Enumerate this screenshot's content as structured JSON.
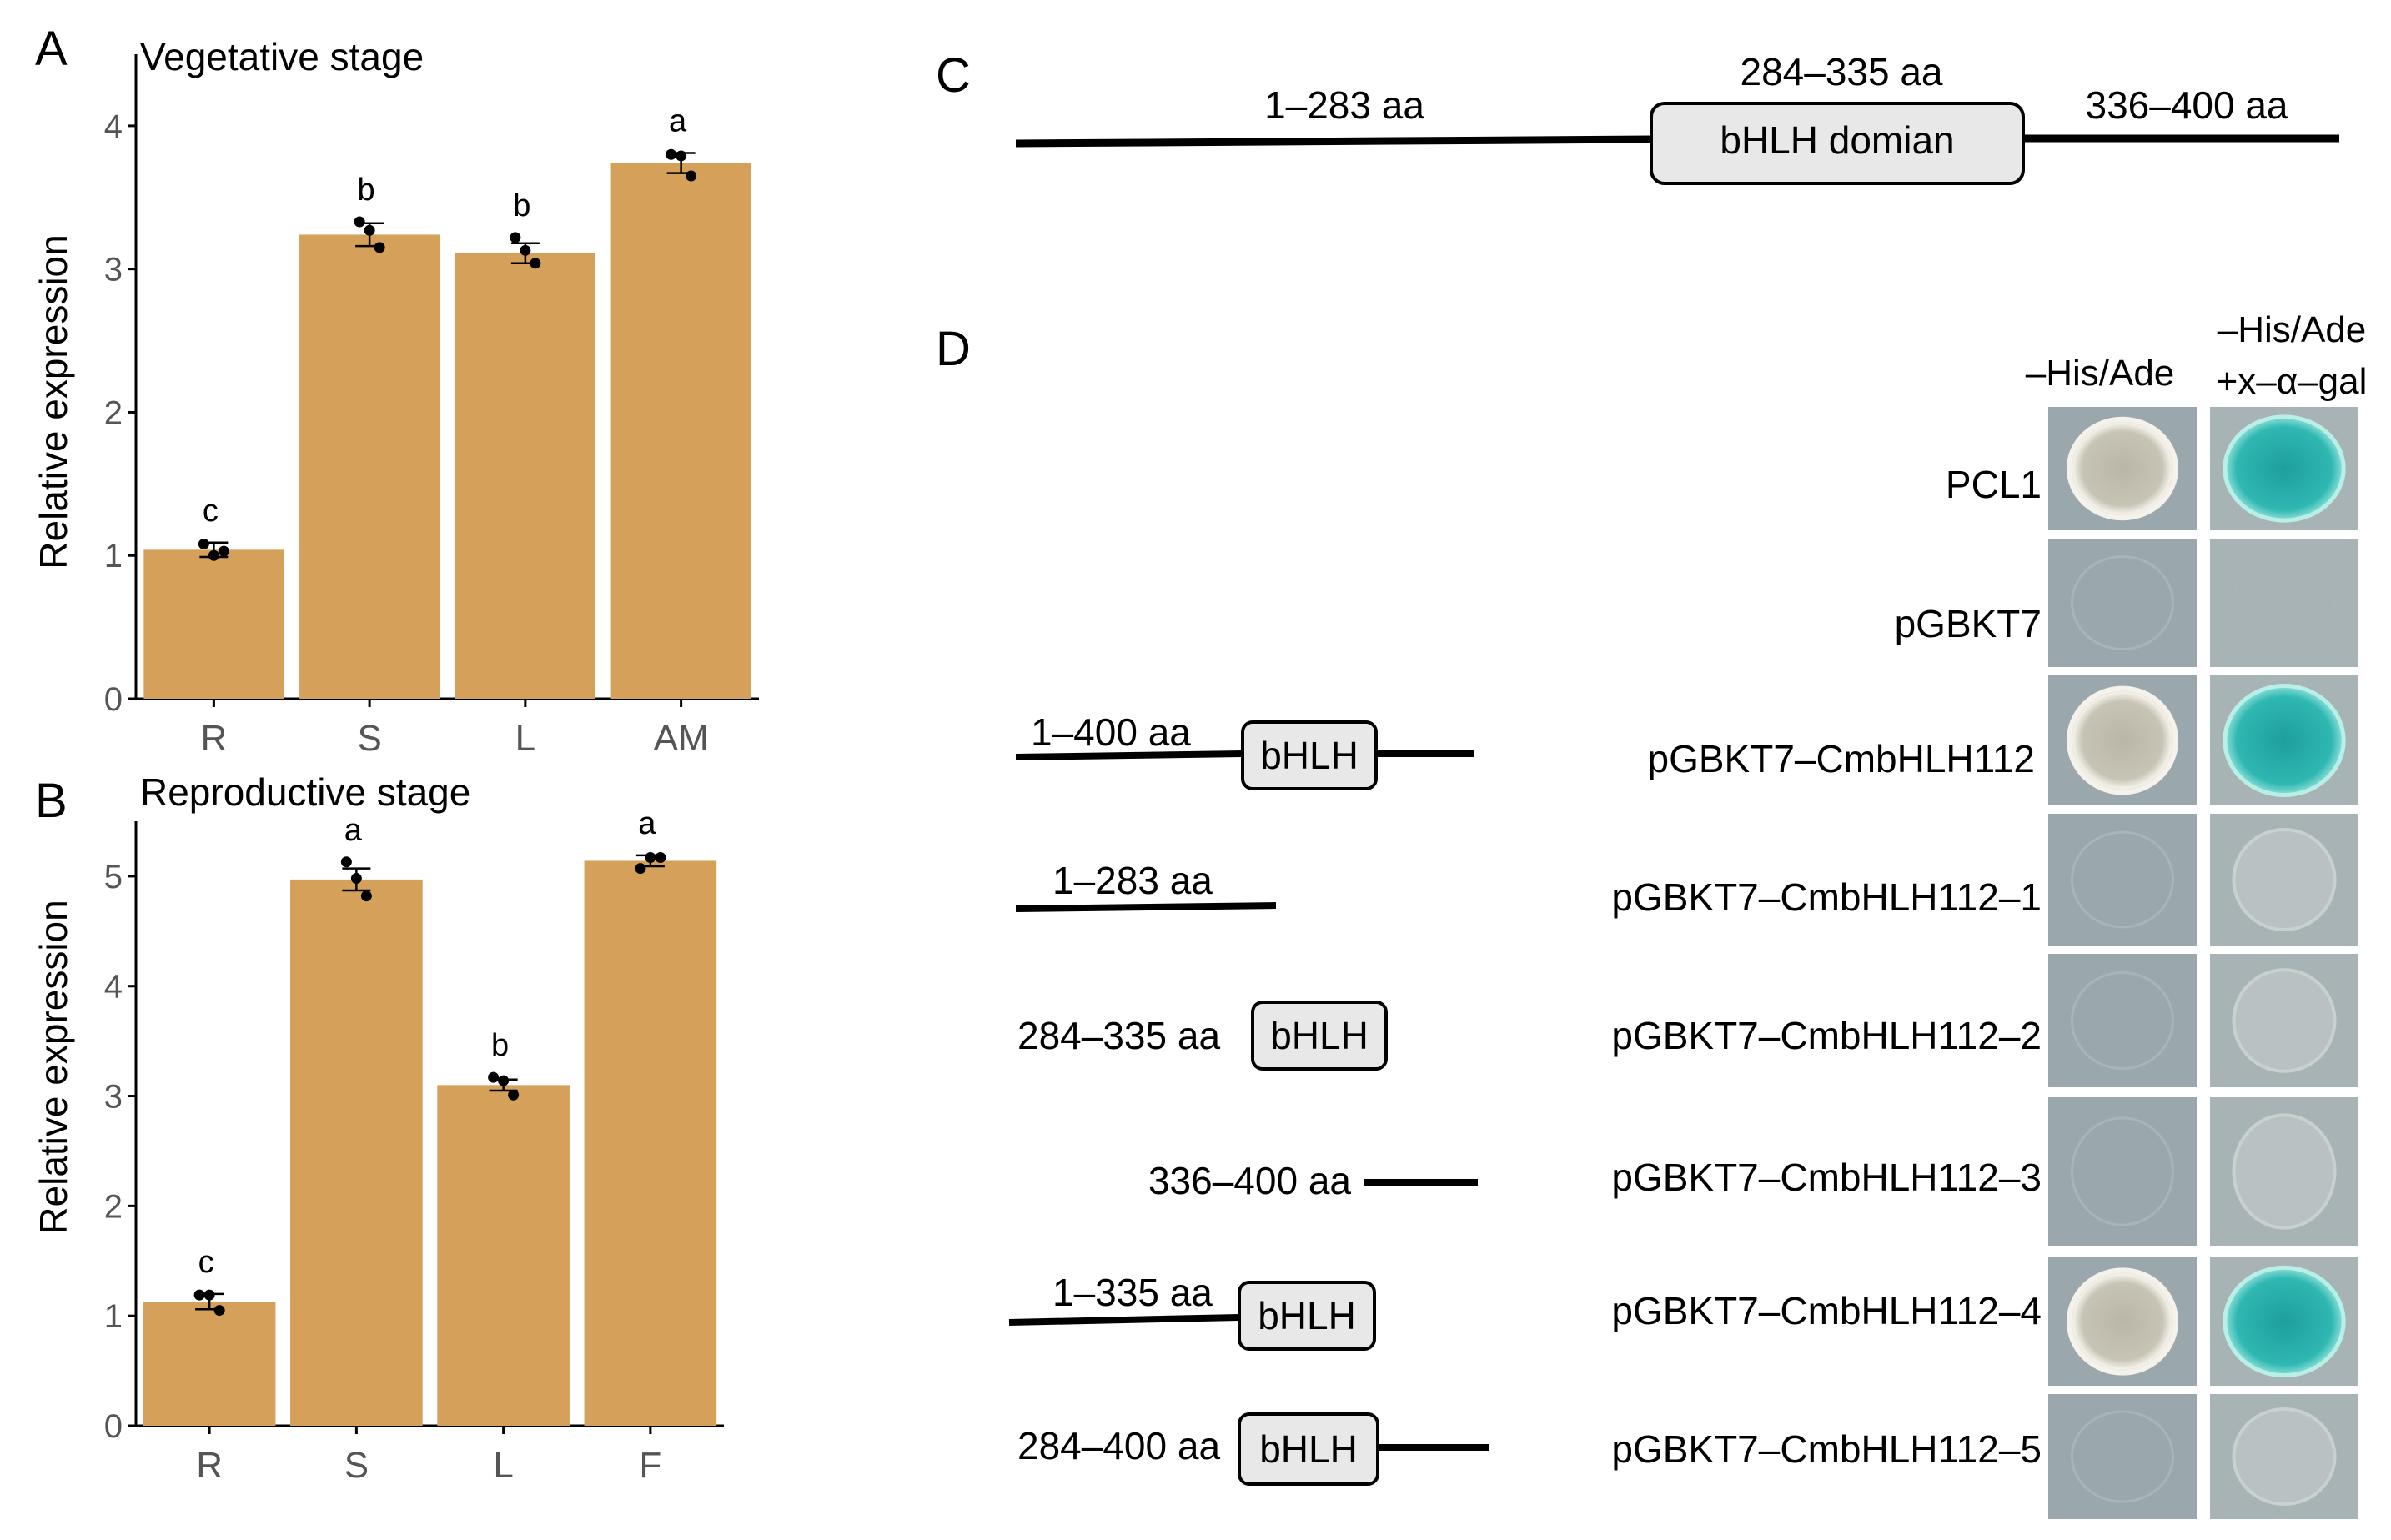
{
  "colors": {
    "bar": "#d4a05a",
    "domain_fill": "#e8e8e8",
    "text": "#000000",
    "tick_text": "#555555"
  },
  "panels": {
    "A": "A",
    "B": "B",
    "C": "C",
    "D": "D"
  },
  "chart_data": [
    {
      "type": "bar",
      "panel": "A",
      "title": "Vegetative stage",
      "xlabel": "",
      "ylabel": "Relative expression",
      "ylim": [
        0,
        4.5
      ],
      "yticks": [
        0,
        1,
        2,
        3,
        4
      ],
      "categories": [
        "R",
        "S",
        "L",
        "AM"
      ],
      "values": [
        1.04,
        3.24,
        3.11,
        3.74
      ],
      "errors": [
        0.05,
        0.08,
        0.07,
        0.07
      ],
      "points": [
        [
          1.08,
          1.0,
          1.03
        ],
        [
          3.33,
          3.27,
          3.15
        ],
        [
          3.22,
          3.13,
          3.04
        ],
        [
          3.8,
          3.79,
          3.65
        ]
      ],
      "significance": [
        "c",
        "b",
        "b",
        "a"
      ],
      "grid": false
    },
    {
      "type": "bar",
      "panel": "B",
      "title": "Reproductive stage",
      "xlabel": "",
      "ylabel": "Relative expression",
      "ylim": [
        0,
        5.5
      ],
      "yticks": [
        0,
        1,
        2,
        3,
        4,
        5
      ],
      "categories": [
        "R",
        "S",
        "L",
        "F"
      ],
      "values": [
        1.13,
        4.97,
        3.1,
        5.14
      ],
      "errors": [
        0.07,
        0.1,
        0.05,
        0.05
      ],
      "points": [
        [
          1.19,
          1.19,
          1.05
        ],
        [
          5.13,
          4.98,
          4.82
        ],
        [
          3.17,
          3.14,
          3.01
        ],
        [
          5.07,
          5.17,
          5.17
        ]
      ],
      "significance": [
        "c",
        "a",
        "b",
        "a"
      ],
      "grid": false
    }
  ],
  "domain_diagram": {
    "left": "1–283 aa",
    "middle": "284–335 aa",
    "domain_label": "bHLH domian",
    "right": "336–400 aa"
  },
  "y2h": {
    "col_headers": {
      "col1": "–His/Ade",
      "col2_line1": "–His/Ade",
      "col2_line2": "+x–α–gal"
    },
    "rows": [
      {
        "name": "PCL1",
        "fragment": "",
        "domain": "",
        "col1": "growth",
        "col2": "blue"
      },
      {
        "name": "pGBKT7",
        "fragment": "",
        "domain": "",
        "col1": "none",
        "col2": "none"
      },
      {
        "name": "pGBKT7–CmbHLH112",
        "fragment": "1–400 aa",
        "domain": "bHLH",
        "col1": "growth",
        "col2": "blue"
      },
      {
        "name": "pGBKT7–CmbHLH112–1",
        "fragment": "1–283 aa",
        "domain": "",
        "col1": "none",
        "col2": "faint"
      },
      {
        "name": "pGBKT7–CmbHLH112–2",
        "fragment": "284–335 aa",
        "domain": "bHLH",
        "col1": "none",
        "col2": "faint"
      },
      {
        "name": "pGBKT7–CmbHLH112–3",
        "fragment": "336–400 aa",
        "domain": "",
        "col1": "none",
        "col2": "faint"
      },
      {
        "name": "pGBKT7–CmbHLH112–4",
        "fragment": "1–335 aa",
        "domain": "bHLH",
        "col1": "growth",
        "col2": "blue"
      },
      {
        "name": "pGBKT7–CmbHLH112–5",
        "fragment": "284–400 aa",
        "domain": "bHLH",
        "col1": "none",
        "col2": "faint"
      }
    ]
  }
}
